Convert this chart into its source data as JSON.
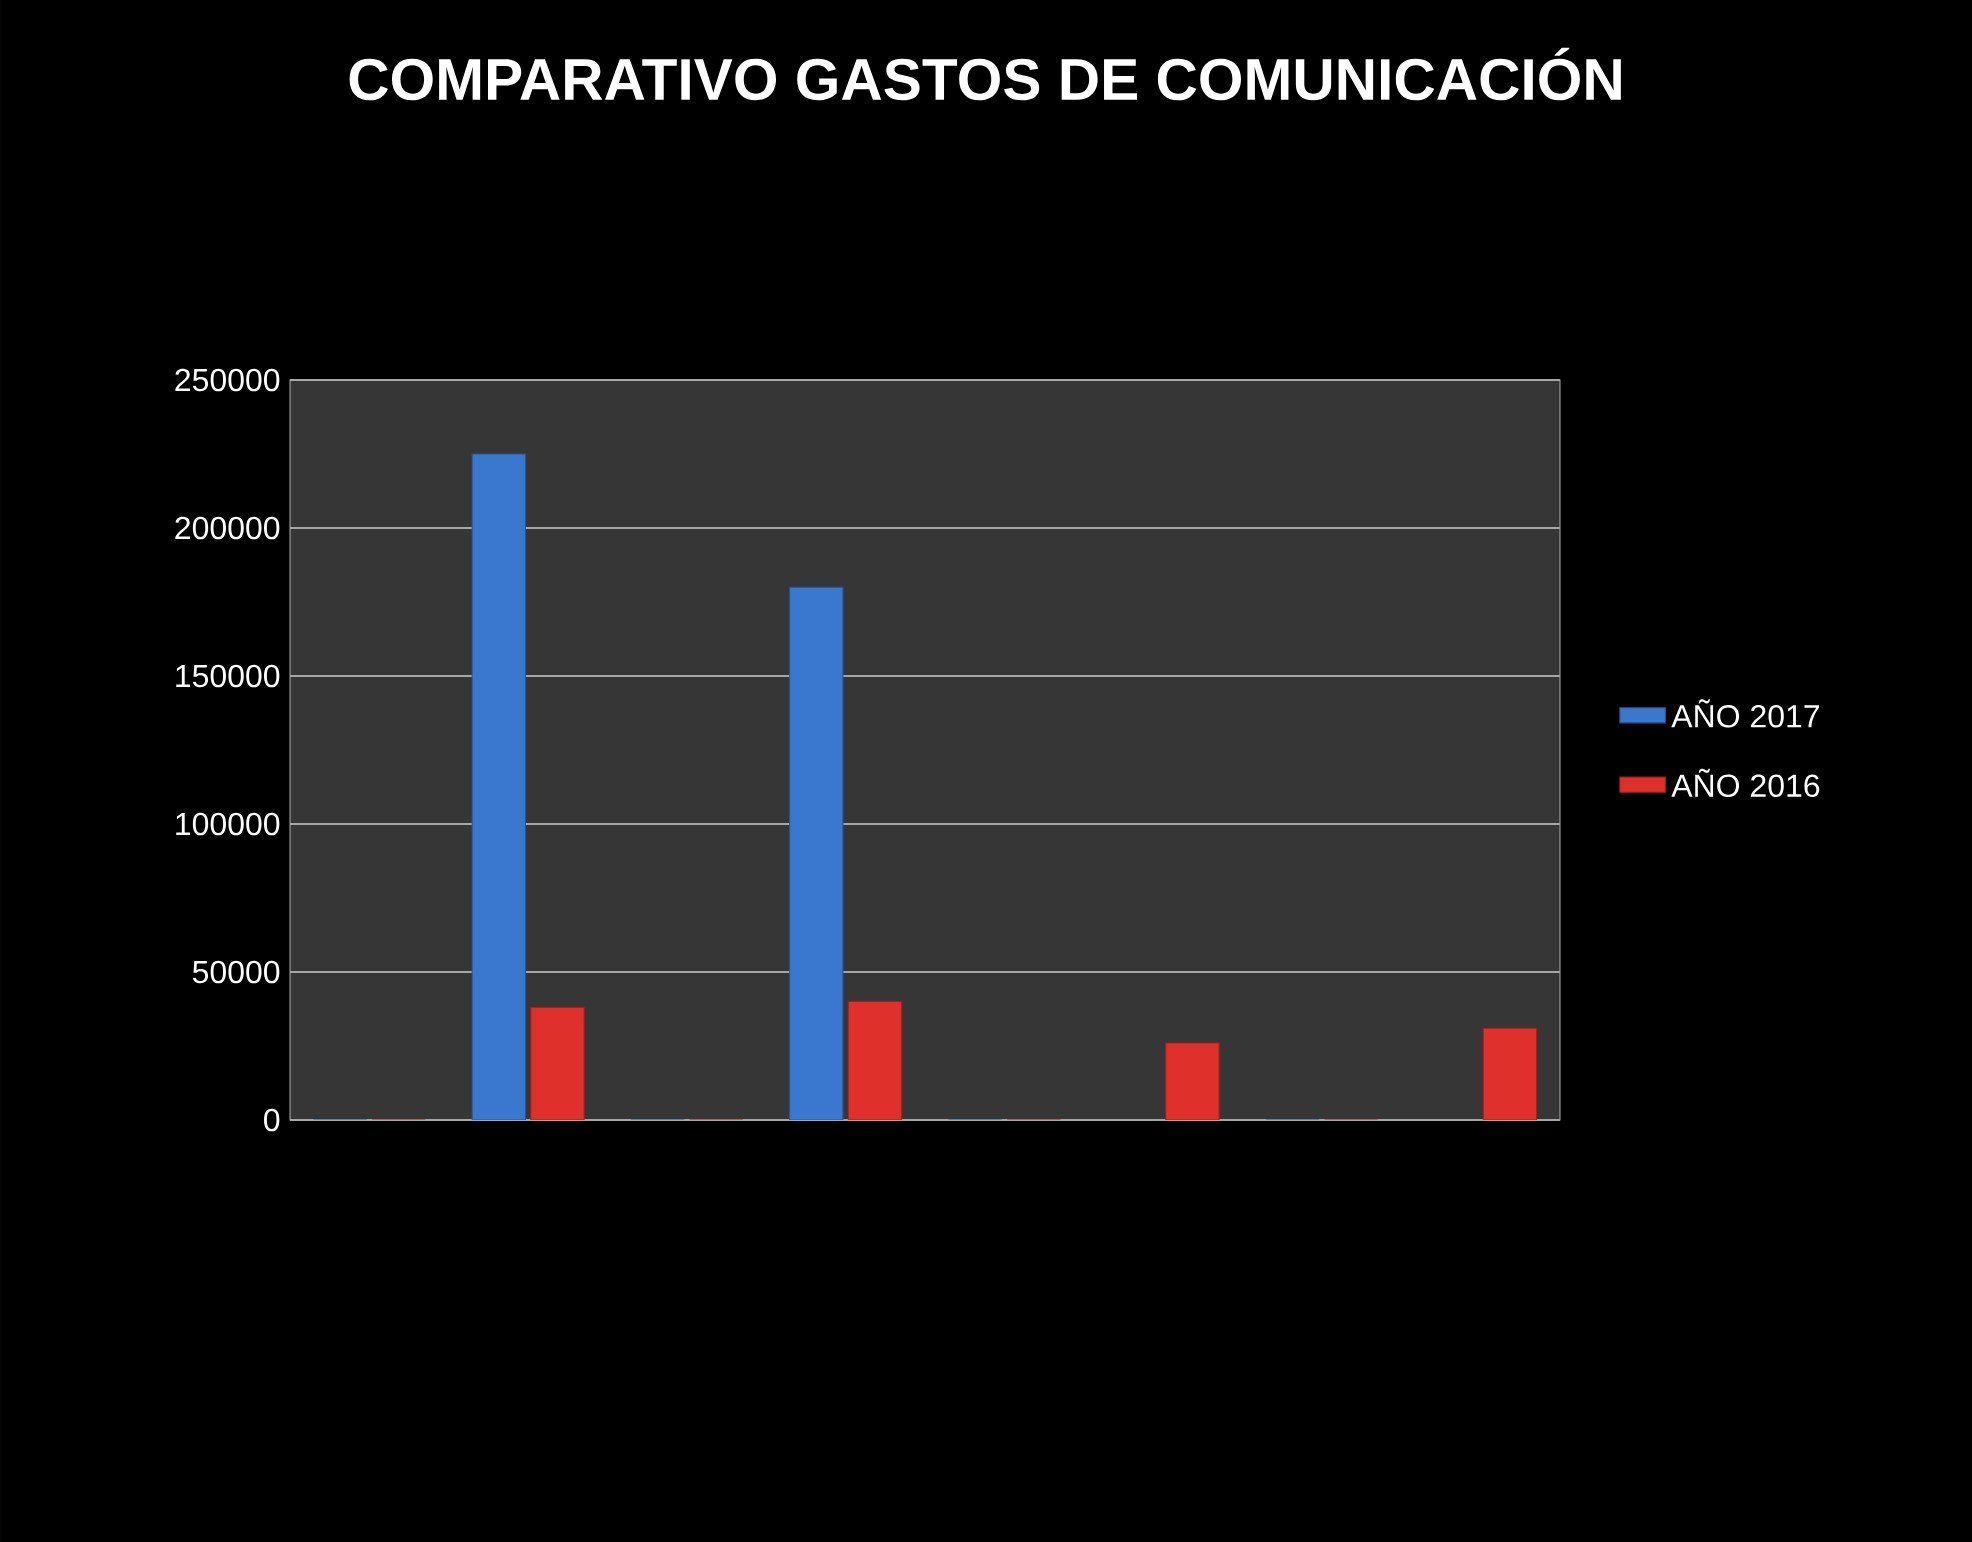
{
  "chart_data": {
    "type": "bar",
    "title": "COMPARATIVO GASTOS DE COMUNICACIÓN",
    "categories": [
      null,
      null,
      null,
      null,
      null,
      null,
      null,
      null
    ],
    "series": [
      {
        "name": "AÑO 2017",
        "color": "#3a78d0",
        "values": [
          0,
          225000,
          0,
          180000,
          0,
          null,
          0,
          null
        ]
      },
      {
        "name": "AÑO 2016",
        "color": "#e0302c",
        "values": [
          0,
          38000,
          0,
          40000,
          0,
          26000,
          0,
          31000
        ]
      }
    ],
    "ylim": [
      0,
      250000
    ],
    "yticks": [
      0,
      50000,
      100000,
      150000,
      200000,
      250000
    ],
    "grid": "y",
    "legend": "right"
  }
}
